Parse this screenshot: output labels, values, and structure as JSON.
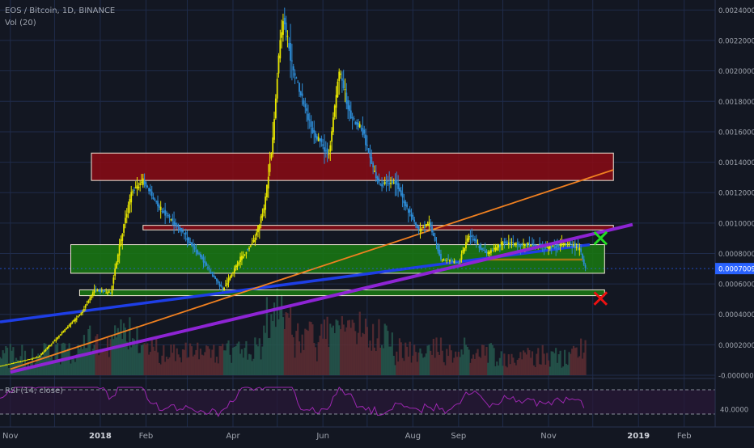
{
  "header": {
    "symbol_line": "EOS / Bitcoin, 1D, BINANCE",
    "volume_indicator": "Vol (20)",
    "rsi_indicator": "RSI (14, close)"
  },
  "price_axis": {
    "ticks": [
      "0.0024000",
      "0.0022000",
      "0.0020000",
      "0.0018000",
      "0.0016000",
      "0.0014000",
      "0.0012000",
      "0.0010000",
      "0.0008000",
      "0.0006000",
      "0.0004000",
      "0.0002000",
      "-0.0000000"
    ],
    "current_price": "0.0007009",
    "current_price_color": "#2962ff"
  },
  "rsi_axis": {
    "ticks": [
      "40.0000"
    ]
  },
  "time_axis": {
    "ticks": [
      "Nov",
      "2018",
      "Feb",
      "Apr",
      "Jun",
      "Aug",
      "Sep",
      "Nov",
      "2019",
      "Feb"
    ]
  },
  "colors": {
    "background": "#131722",
    "candle_up": "#e8e600",
    "candle_down": "#2d8cd6",
    "volume": "#5d2d33",
    "resistance_zone": "#8b0a14",
    "support_zone": "#1a7a12",
    "purple_trendline": "#8e24d4",
    "blue_trendline": "#1e3ee6",
    "orange_trendline": "#f08020",
    "rsi_line": "#9c27b0"
  },
  "annotations": {
    "green_mark": "✕",
    "red_mark": "✕"
  },
  "chart_data": {
    "type": "candlestick",
    "symbol": "EOS / Bitcoin",
    "interval": "1D",
    "exchange": "BINANCE",
    "ylim": [
      0,
      0.00245
    ],
    "price_path": [
      {
        "date": "2017-10-25",
        "price": 6e-05
      },
      {
        "date": "2017-11-20",
        "price": 0.00012
      },
      {
        "date": "2017-12-20",
        "price": 0.00042
      },
      {
        "date": "2017-12-28",
        "price": 0.00056
      },
      {
        "date": "2018-01-08",
        "price": 0.00054
      },
      {
        "date": "2018-01-15",
        "price": 0.0009
      },
      {
        "date": "2018-01-22",
        "price": 0.0012
      },
      {
        "date": "2018-01-30",
        "price": 0.00128
      },
      {
        "date": "2018-02-10",
        "price": 0.0011
      },
      {
        "date": "2018-02-25",
        "price": 0.00095
      },
      {
        "date": "2018-03-10",
        "price": 0.00078
      },
      {
        "date": "2018-03-25",
        "price": 0.00056
      },
      {
        "date": "2018-04-05",
        "price": 0.00075
      },
      {
        "date": "2018-04-15",
        "price": 0.00088
      },
      {
        "date": "2018-04-22",
        "price": 0.0011
      },
      {
        "date": "2018-04-28",
        "price": 0.00155
      },
      {
        "date": "2018-05-02",
        "price": 0.0021
      },
      {
        "date": "2018-05-05",
        "price": 0.00235
      },
      {
        "date": "2018-05-12",
        "price": 0.002
      },
      {
        "date": "2018-05-25",
        "price": 0.0016
      },
      {
        "date": "2018-06-05",
        "price": 0.00145
      },
      {
        "date": "2018-06-12",
        "price": 0.002
      },
      {
        "date": "2018-06-20",
        "price": 0.0017
      },
      {
        "date": "2018-06-28",
        "price": 0.0016
      },
      {
        "date": "2018-07-05",
        "price": 0.00135
      },
      {
        "date": "2018-07-10",
        "price": 0.00125
      },
      {
        "date": "2018-07-20",
        "price": 0.00128
      },
      {
        "date": "2018-07-28",
        "price": 0.0011
      },
      {
        "date": "2018-08-05",
        "price": 0.00095
      },
      {
        "date": "2018-08-12",
        "price": 0.001
      },
      {
        "date": "2018-08-20",
        "price": 0.00076
      },
      {
        "date": "2018-09-01",
        "price": 0.00074
      },
      {
        "date": "2018-09-08",
        "price": 0.00092
      },
      {
        "date": "2018-09-20",
        "price": 0.0008
      },
      {
        "date": "2018-10-01",
        "price": 0.00087
      },
      {
        "date": "2018-10-15",
        "price": 0.00086
      },
      {
        "date": "2018-11-01",
        "price": 0.00084
      },
      {
        "date": "2018-11-15",
        "price": 0.00087
      },
      {
        "date": "2018-11-22",
        "price": 0.00083
      },
      {
        "date": "2018-11-26",
        "price": 0.0007009
      }
    ],
    "zones": [
      {
        "color": "red",
        "from": "2017-12-26",
        "to": "2018-12-15",
        "bottom": 0.00128,
        "top": 0.00146
      },
      {
        "color": "red",
        "from": "2018-01-30",
        "to": "2018-12-15",
        "bottom": 0.000955,
        "top": 0.000985
      },
      {
        "color": "green",
        "from": "2017-12-12",
        "to": "2018-12-09",
        "bottom": 0.00067,
        "top": 0.000858
      },
      {
        "color": "green",
        "from": "2017-12-18",
        "to": "2018-12-09",
        "bottom": 0.000523,
        "top": 0.000561
      }
    ],
    "trendlines": [
      {
        "color": "purple",
        "from": {
          "date": "2017-11-01",
          "price": 2e-05
        },
        "to": {
          "date": "2018-12-28",
          "price": 0.00099
        }
      },
      {
        "color": "blue",
        "from": {
          "date": "2017-10-25",
          "price": 0.00035
        },
        "to": {
          "date": "2018-11-29",
          "price": 0.000858
        }
      },
      {
        "color": "orange",
        "from": {
          "date": "2017-11-01",
          "price": 4e-05
        },
        "to": {
          "date": "2018-12-15",
          "price": 0.00135
        }
      }
    ],
    "rsi_level_lines": [
      70,
      30
    ],
    "xlabel": "",
    "ylabel": ""
  }
}
